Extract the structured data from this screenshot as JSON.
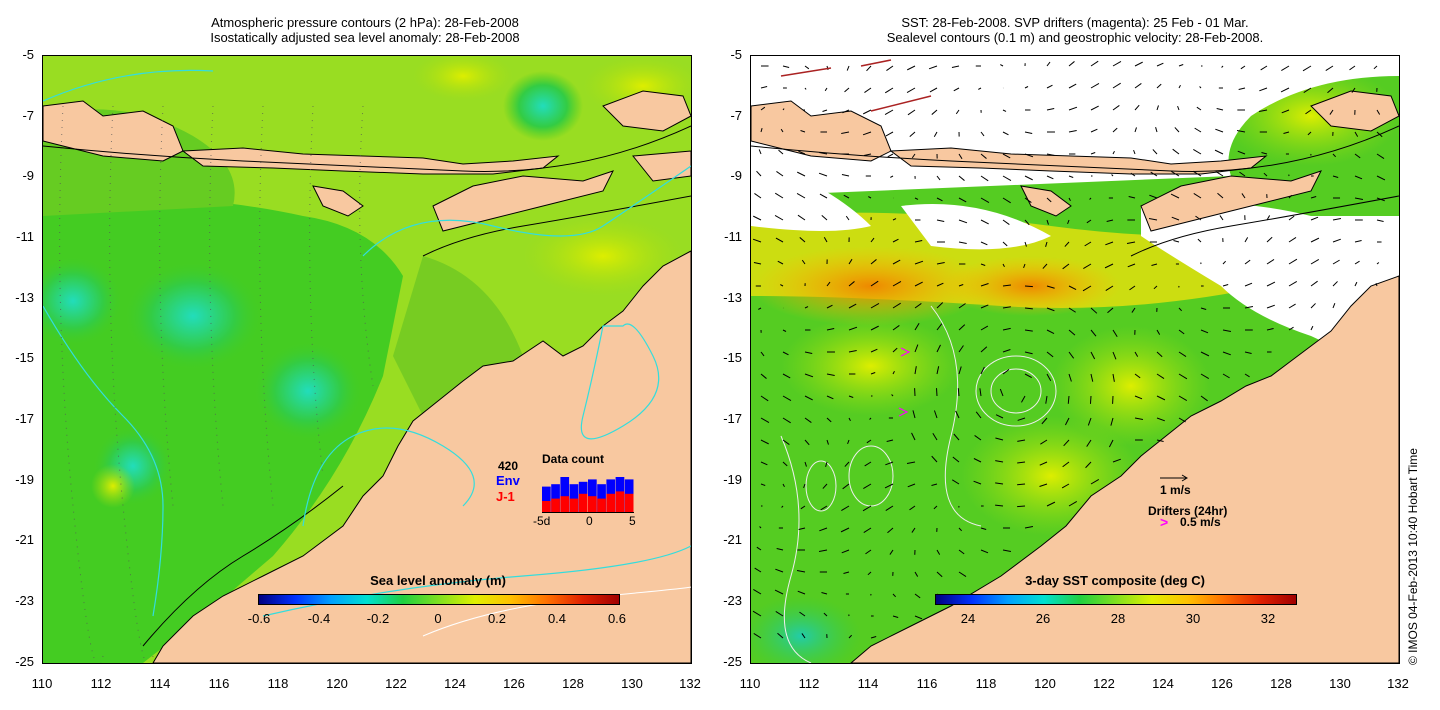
{
  "left_panel": {
    "title_line1": "Atmospheric pressure contours (2 hPa): 28-Feb-2008",
    "title_line2": "Isostatically adjusted sea level anomaly: 28-Feb-2008",
    "y_ticks": [
      "-5",
      "-7",
      "-9",
      "-11",
      "-13",
      "-15",
      "-17",
      "-19",
      "-21",
      "-23",
      "-25"
    ],
    "x_ticks": [
      "110",
      "112",
      "114",
      "116",
      "118",
      "120",
      "122",
      "124",
      "126",
      "128",
      "130",
      "132"
    ],
    "colorbar": {
      "title": "Sea level anomaly (m)",
      "ticks": [
        "-0.6",
        "-0.4",
        "-0.2",
        "0",
        "0.2",
        "0.4",
        "0.6"
      ]
    },
    "inset": {
      "title": "Data count",
      "count": "420",
      "env_label": "Env",
      "j1_label": "J-1",
      "x_ticks": [
        "-5d",
        "0",
        "5"
      ],
      "env_color": "#0000ff",
      "j1_color": "#ff0000",
      "env_values": [
        0.55,
        0.6,
        0.75,
        0.6,
        0.65,
        0.7,
        0.6,
        0.7,
        0.75,
        0.7
      ],
      "j1_values": [
        0.25,
        0.3,
        0.35,
        0.3,
        0.4,
        0.35,
        0.3,
        0.4,
        0.45,
        0.4
      ]
    }
  },
  "right_panel": {
    "title_line1": "SST: 28-Feb-2008. SVP drifters (magenta): 25 Feb - 01 Mar.",
    "title_line2": "Sealevel contours (0.1 m) and geostrophic velocity: 28-Feb-2008.",
    "y_ticks": [
      "-5",
      "-7",
      "-9",
      "-11",
      "-13",
      "-15",
      "-17",
      "-19",
      "-21",
      "-23",
      "-25"
    ],
    "x_ticks": [
      "110",
      "112",
      "114",
      "116",
      "118",
      "120",
      "122",
      "124",
      "126",
      "128",
      "130",
      "132"
    ],
    "colorbar": {
      "title": "3-day SST composite (deg C)",
      "ticks": [
        "24",
        "26",
        "28",
        "30",
        "32"
      ]
    },
    "velocity_legend": "1 m/s",
    "drifter_legend_line1": "Drifters (24hr)",
    "drifter_legend_line2": "0.5 m/s",
    "drifter_symbol": ">",
    "drifter_color": "#ff00ff"
  },
  "copyright": "© IMOS 04-Feb-2013 10:40 Hobart Time",
  "colors": {
    "land": "#f8c8a0",
    "ocean_green": "#33cc22",
    "ocean_yellow": "#ccee00",
    "ocean_cyan": "#22ccaa",
    "contour_cyan": "#33dddd"
  }
}
